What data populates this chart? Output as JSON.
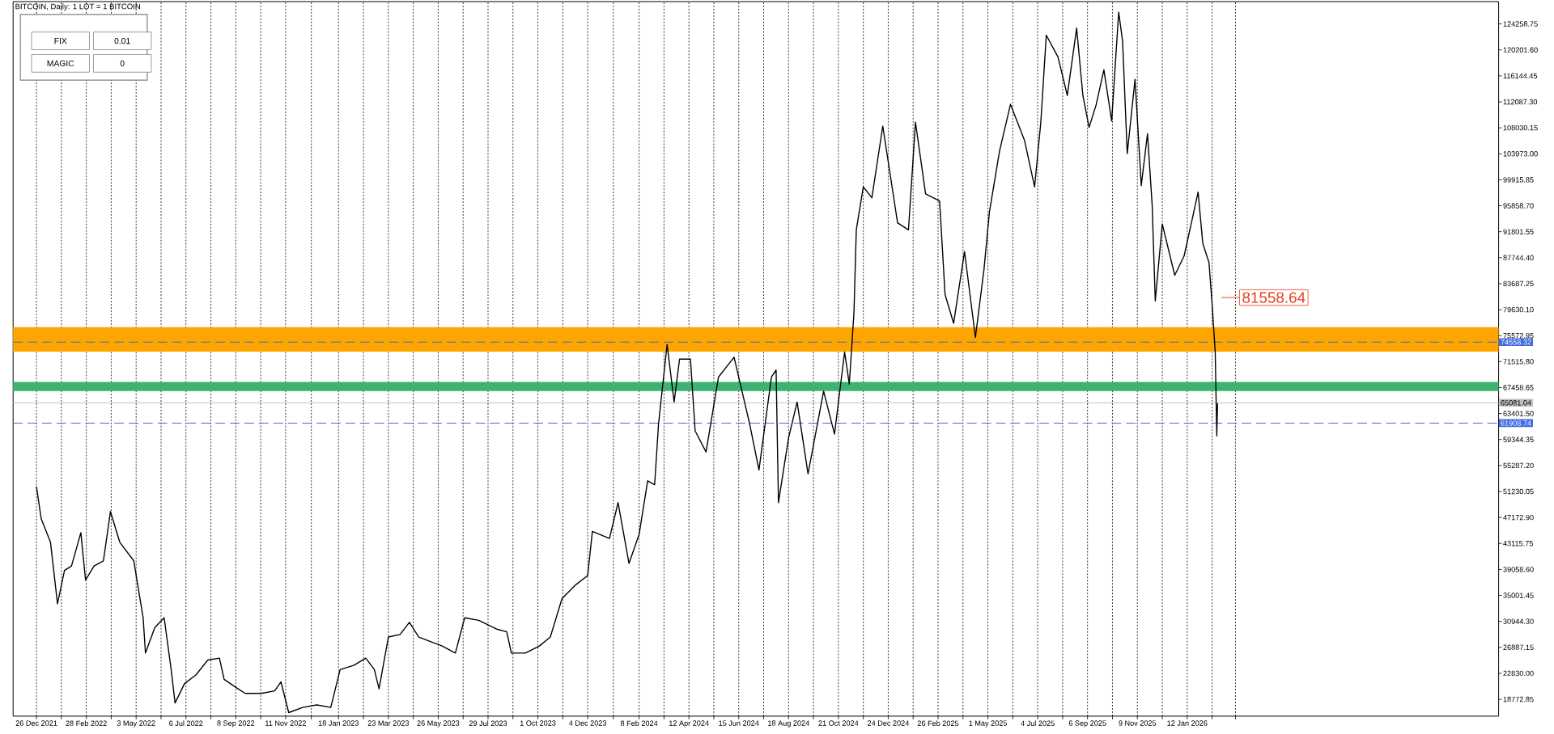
{
  "chart_data": {
    "type": "line",
    "title": "BITCOIN, Daily:  1 LOT = 1 BITCOIN",
    "color": "#000000",
    "grid": "x",
    "xlim": [
      "2021-11-26",
      "2027-02-16"
    ],
    "ylim": [
      16140,
      127745
    ],
    "x": [
      "2021-12-26",
      "2022-01-01",
      "2022-01-13",
      "2022-01-22",
      "2022-01-31",
      "2022-02-09",
      "2022-02-21",
      "2022-02-27",
      "2022-03-10",
      "2022-03-22",
      "2022-03-31",
      "2022-04-12",
      "2022-04-30",
      "2022-05-12",
      "2022-05-15",
      "2022-05-27",
      "2022-06-08",
      "2022-06-17",
      "2022-06-22",
      "2022-07-04",
      "2022-07-19",
      "2022-08-03",
      "2022-08-18",
      "2022-08-24",
      "2022-09-11",
      "2022-09-20",
      "2022-10-11",
      "2022-10-28",
      "2022-11-05",
      "2022-11-15",
      "2022-12-03",
      "2022-12-21",
      "2023-01-08",
      "2023-01-20",
      "2023-02-07",
      "2023-02-22",
      "2023-03-05",
      "2023-03-11",
      "2023-03-23",
      "2023-04-07",
      "2023-04-19",
      "2023-05-01",
      "2023-05-16",
      "2023-05-31",
      "2023-06-17",
      "2023-06-29",
      "2023-07-17",
      "2023-08-10",
      "2023-08-22",
      "2023-08-28",
      "2023-09-15",
      "2023-10-03",
      "2023-10-17",
      "2023-11-01",
      "2023-11-19",
      "2023-12-04",
      "2023-12-10",
      "2024-01-01",
      "2024-01-12",
      "2024-01-26",
      "2024-02-08",
      "2024-02-19",
      "2024-02-28",
      "2024-03-04",
      "2024-03-15",
      "2024-03-24",
      "2024-03-31",
      "2024-04-14",
      "2024-04-20",
      "2024-05-04",
      "2024-05-20",
      "2024-06-09",
      "2024-06-29",
      "2024-07-11",
      "2024-07-27",
      "2024-08-02",
      "2024-08-05",
      "2024-08-18",
      "2024-08-29",
      "2024-09-12",
      "2024-10-02",
      "2024-10-16",
      "2024-10-25",
      "2024-10-29",
      "2024-11-04",
      "2024-11-10",
      "2024-11-13",
      "2024-11-22",
      "2024-12-03",
      "2024-12-17",
      "2025-01-05",
      "2025-01-19",
      "2025-01-28",
      "2025-02-10",
      "2025-02-28",
      "2025-03-07",
      "2025-03-18",
      "2025-04-01",
      "2025-04-15",
      "2025-04-26",
      "2025-05-03",
      "2025-05-16",
      "2025-05-30",
      "2025-06-17",
      "2025-06-30",
      "2025-07-08",
      "2025-07-15",
      "2025-07-30",
      "2025-08-11",
      "2025-08-23",
      "2025-08-31",
      "2025-09-08",
      "2025-09-17",
      "2025-09-27",
      "2025-10-07",
      "2025-10-16",
      "2025-10-21",
      "2025-10-27",
      "2025-11-06",
      "2025-11-14",
      "2025-11-22",
      "2025-11-28",
      "2025-12-02",
      "2025-12-11",
      "2025-12-27",
      "2026-01-08",
      "2026-01-18",
      "2026-01-26",
      "2026-02-01",
      "2026-02-09",
      "2026-02-13",
      "2026-02-17",
      "2026-02-19",
      "2026-02-20"
    ],
    "values": [
      52000,
      47000,
      43300,
      33700,
      38900,
      39600,
      44800,
      37400,
      39600,
      40400,
      48100,
      43300,
      40400,
      31500,
      26000,
      30000,
      31500,
      23400,
      18200,
      21200,
      22600,
      24900,
      25200,
      21900,
      20400,
      19700,
      19700,
      20100,
      21500,
      16700,
      17500,
      17900,
      17500,
      23400,
      24100,
      25200,
      23400,
      20400,
      28500,
      28900,
      30800,
      28500,
      27800,
      27100,
      26000,
      31500,
      31100,
      29700,
      29300,
      26000,
      26000,
      27100,
      28500,
      34500,
      36700,
      38100,
      45000,
      43900,
      49500,
      40000,
      44500,
      52900,
      52300,
      61800,
      74200,
      65200,
      71900,
      71900,
      60700,
      57400,
      69100,
      72200,
      61800,
      54600,
      69100,
      70200,
      49500,
      59600,
      65200,
      54000,
      66900,
      60200,
      69100,
      73000,
      68000,
      79200,
      92100,
      98800,
      97100,
      108300,
      93200,
      92100,
      108900,
      97700,
      96600,
      82000,
      77500,
      88700,
      75300,
      85900,
      94900,
      104400,
      111700,
      106100,
      98800,
      108900,
      122500,
      119100,
      113100,
      123600,
      113100,
      108100,
      111600,
      117100,
      109100,
      126100,
      121600,
      104000,
      115600,
      99000,
      107100,
      96000,
      81000,
      93000,
      85000,
      88000,
      93500,
      98000,
      90000,
      87000,
      80500,
      73000,
      59900,
      65000
    ],
    "xticks": [
      {
        "value": "2021-12-26",
        "label": "26 Dec 2021"
      },
      {
        "value": "2022-01-27",
        "label": null
      },
      {
        "value": "2022-02-28",
        "label": "28 Feb 2022"
      },
      {
        "value": "2022-04-01",
        "label": null
      },
      {
        "value": "2022-05-03",
        "label": "3 May 2022"
      },
      {
        "value": "2022-06-04",
        "label": null
      },
      {
        "value": "2022-07-06",
        "label": "6 Jul 2022"
      },
      {
        "value": "2022-08-07",
        "label": null
      },
      {
        "value": "2022-09-08",
        "label": "8 Sep 2022"
      },
      {
        "value": "2022-10-10",
        "label": null
      },
      {
        "value": "2022-11-11",
        "label": "11 Nov 2022"
      },
      {
        "value": "2022-12-14",
        "label": null
      },
      {
        "value": "2023-01-18",
        "label": "18 Jan 2023"
      },
      {
        "value": "2023-02-19",
        "label": null
      },
      {
        "value": "2023-03-23",
        "label": "23 Mar 2023"
      },
      {
        "value": "2023-04-24",
        "label": null
      },
      {
        "value": "2023-05-26",
        "label": "26 May 2023"
      },
      {
        "value": "2023-06-27",
        "label": null
      },
      {
        "value": "2023-07-29",
        "label": "29 Jul 2023"
      },
      {
        "value": "2023-08-30",
        "label": null
      },
      {
        "value": "2023-10-01",
        "label": "1 Oct 2023"
      },
      {
        "value": "2023-11-02",
        "label": null
      },
      {
        "value": "2023-12-04",
        "label": "4 Dec 2023"
      },
      {
        "value": "2024-01-06",
        "label": null
      },
      {
        "value": "2024-02-08",
        "label": "8 Feb 2024"
      },
      {
        "value": "2024-03-11",
        "label": null
      },
      {
        "value": "2024-04-12",
        "label": "12 Apr 2024"
      },
      {
        "value": "2024-05-14",
        "label": null
      },
      {
        "value": "2024-06-15",
        "label": "15 Jun 2024"
      },
      {
        "value": "2024-07-17",
        "label": null
      },
      {
        "value": "2024-08-18",
        "label": "18 Aug 2024"
      },
      {
        "value": "2024-09-19",
        "label": null
      },
      {
        "value": "2024-10-21",
        "label": "21 Oct 2024"
      },
      {
        "value": "2024-11-22",
        "label": null
      },
      {
        "value": "2024-12-24",
        "label": "24 Dec 2024"
      },
      {
        "value": "2025-01-25",
        "label": null
      },
      {
        "value": "2025-02-26",
        "label": "26 Feb 2025"
      },
      {
        "value": "2025-03-30",
        "label": null
      },
      {
        "value": "2025-05-01",
        "label": "1 May 2025"
      },
      {
        "value": "2025-06-02",
        "label": null
      },
      {
        "value": "2025-07-04",
        "label": "4 Jul 2025"
      },
      {
        "value": "2025-08-05",
        "label": null
      },
      {
        "value": "2025-09-06",
        "label": "6 Sep 2025"
      },
      {
        "value": "2025-10-08",
        "label": null
      },
      {
        "value": "2025-11-09",
        "label": "9 Nov 2025"
      },
      {
        "value": "2025-12-11",
        "label": null
      },
      {
        "value": "2026-01-12",
        "label": "12 Jan 2026"
      },
      {
        "value": "2026-02-13",
        "label": null
      },
      {
        "value": "2026-03-15",
        "label": null
      }
    ],
    "yticks": [
      {
        "value": 18772.85,
        "label": "18772.85"
      },
      {
        "value": 22830.0,
        "label": "22830.00"
      },
      {
        "value": 26887.15,
        "label": "26887.15"
      },
      {
        "value": 30944.3,
        "label": "30944.30"
      },
      {
        "value": 35001.45,
        "label": "35001.45"
      },
      {
        "value": 39058.6,
        "label": "39058.60"
      },
      {
        "value": 43115.75,
        "label": "43115.75"
      },
      {
        "value": 47172.9,
        "label": "47172.90"
      },
      {
        "value": 51230.05,
        "label": "51230.05"
      },
      {
        "value": 55287.2,
        "label": "55287.20"
      },
      {
        "value": 59344.35,
        "label": "59344.35"
      },
      {
        "value": 63401.5,
        "label": "63401.50"
      },
      {
        "value": 67458.65,
        "label": "67458.65"
      },
      {
        "value": 71515.8,
        "label": "71515.80"
      },
      {
        "value": 75572.95,
        "label": "75572.95"
      },
      {
        "value": 79630.1,
        "label": "79630.10"
      },
      {
        "value": 83687.25,
        "label": "83687.25"
      },
      {
        "value": 87744.4,
        "label": "87744.40"
      },
      {
        "value": 91801.55,
        "label": "91801.55"
      },
      {
        "value": 95858.7,
        "label": "95858.70"
      },
      {
        "value": 99915.85,
        "label": "99915.85"
      },
      {
        "value": 103973.0,
        "label": "103973.00"
      },
      {
        "value": 108030.15,
        "label": "108030.15"
      },
      {
        "value": 112087.3,
        "label": "112087.30"
      },
      {
        "value": 116144.45,
        "label": "116144.45"
      },
      {
        "value": 120201.6,
        "label": "120201.60"
      },
      {
        "value": 124258.75,
        "label": "124258.75"
      }
    ],
    "ref_lines": [
      {
        "axis": "y",
        "value": 74558.32,
        "label": "74558.32",
        "color": "#4169e1",
        "line_style": "dashed"
      },
      {
        "axis": "y",
        "value": 65081.04,
        "label": "65081.04",
        "color": "#c0c0c0",
        "line_style": "solid"
      },
      {
        "axis": "y",
        "value": 61908.74,
        "label": "61908.74",
        "color": "#4169e1",
        "line_style": "dashed"
      }
    ],
    "bands": [
      {
        "axis": "y",
        "from": 73070,
        "to": 76880,
        "color": "#ffa500"
      },
      {
        "axis": "y",
        "from": 66930,
        "to": 68330,
        "color": "#3cb371"
      }
    ],
    "annotations": [
      "81558.64",
      "FIX",
      "0.01",
      "MAGIC",
      "0"
    ]
  }
}
